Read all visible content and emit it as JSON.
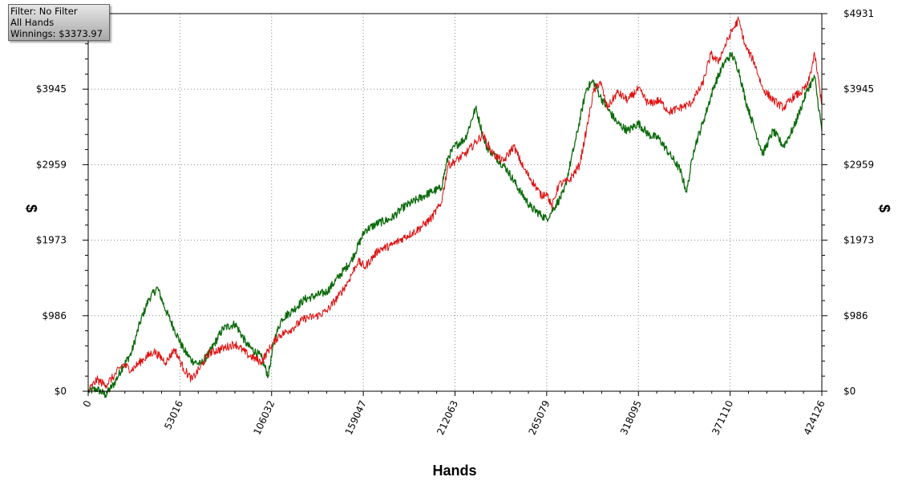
{
  "info_box": {
    "filter": "Filter: No Filter",
    "hands": "All Hands",
    "winnings": "Winnings: $3373.97"
  },
  "colors": {
    "red_series": "#dd1111",
    "green_series": "#0b6b0b",
    "grid": "#888888",
    "axis": "#000000"
  },
  "chart_data": {
    "type": "line",
    "xlabel": "Hands",
    "ylabel": "$",
    "xlim": [
      0,
      424126
    ],
    "ylim": [
      0,
      4931
    ],
    "x_ticks": [
      "0",
      "53016",
      "106032",
      "159047",
      "212063",
      "265079",
      "318095",
      "371110",
      "424126"
    ],
    "y_ticks": [
      "$0",
      "$986",
      "$1973",
      "$2959",
      "$3945",
      "$4931"
    ],
    "grid": true,
    "series": [
      {
        "key": "red",
        "x": [
          0,
          5000,
          10000,
          15000,
          20000,
          25000,
          32000,
          38000,
          45000,
          50000,
          55000,
          60000,
          65000,
          70000,
          78000,
          85000,
          92000,
          100000,
          106000,
          110000,
          118000,
          125000,
          132000,
          138000,
          145000,
          150000,
          156000,
          160000,
          168000,
          175000,
          182000,
          190000,
          198000,
          204000,
          208000,
          212000,
          218000,
          224000,
          228000,
          234000,
          240000,
          246000,
          252000,
          258000,
          262000,
          265000,
          268000,
          272000,
          278000,
          284000,
          288000,
          292000,
          296000,
          300000,
          306000,
          312000,
          318000,
          324000,
          330000,
          336000,
          342000,
          348000,
          355000,
          360000,
          364000,
          368000,
          372000,
          376000,
          380000,
          385000,
          390000,
          396000,
          402000,
          408000,
          412000,
          416000,
          420000,
          424126
        ],
        "y": [
          0,
          150,
          80,
          200,
          350,
          280,
          420,
          520,
          380,
          550,
          300,
          150,
          320,
          500,
          560,
          620,
          480,
          380,
          600,
          720,
          820,
          950,
          980,
          1050,
          1250,
          1420,
          1700,
          1620,
          1850,
          1900,
          2000,
          2100,
          2250,
          2450,
          2950,
          3000,
          3100,
          3250,
          3350,
          3100,
          3000,
          3200,
          2900,
          2700,
          2550,
          2600,
          2400,
          2700,
          2750,
          2950,
          3400,
          3900,
          4050,
          3700,
          3900,
          3800,
          3950,
          3750,
          3800,
          3650,
          3700,
          3750,
          4000,
          4400,
          4300,
          4500,
          4700,
          4850,
          4500,
          4300,
          3950,
          3800,
          3700,
          3850,
          3900,
          4000,
          4400,
          3750
        ]
      },
      {
        "key": "green",
        "x": [
          0,
          5000,
          10000,
          15000,
          20000,
          25000,
          30000,
          35000,
          40000,
          45000,
          50000,
          55000,
          60000,
          65000,
          70000,
          78000,
          85000,
          92000,
          100000,
          104000,
          108000,
          112000,
          118000,
          125000,
          132000,
          138000,
          145000,
          152000,
          160000,
          168000,
          175000,
          182000,
          190000,
          198000,
          204000,
          208000,
          212000,
          218000,
          224000,
          230000,
          236000,
          242000,
          250000,
          256000,
          262000,
          265000,
          268000,
          275000,
          282000,
          288000,
          292000,
          296000,
          300000,
          306000,
          312000,
          318000,
          324000,
          330000,
          336000,
          342000,
          346000,
          350000,
          356000,
          362000,
          368000,
          372000,
          376000,
          380000,
          385000,
          390000,
          396000,
          402000,
          408000,
          412000,
          416000,
          420000,
          424126
        ],
        "y": [
          0,
          30,
          -50,
          100,
          320,
          500,
          900,
          1200,
          1350,
          1050,
          800,
          550,
          400,
          350,
          500,
          820,
          880,
          600,
          450,
          200,
          700,
          950,
          1050,
          1200,
          1250,
          1300,
          1500,
          1700,
          2100,
          2200,
          2250,
          2400,
          2500,
          2600,
          2650,
          3050,
          3200,
          3300,
          3700,
          3200,
          3050,
          2900,
          2600,
          2400,
          2300,
          2250,
          2350,
          2600,
          3300,
          3950,
          4050,
          3850,
          3700,
          3500,
          3400,
          3500,
          3350,
          3300,
          3100,
          2900,
          2600,
          3150,
          3550,
          4000,
          4300,
          4400,
          4200,
          3800,
          3450,
          3100,
          3400,
          3200,
          3450,
          3700,
          3950,
          4100,
          3400
        ]
      }
    ]
  }
}
